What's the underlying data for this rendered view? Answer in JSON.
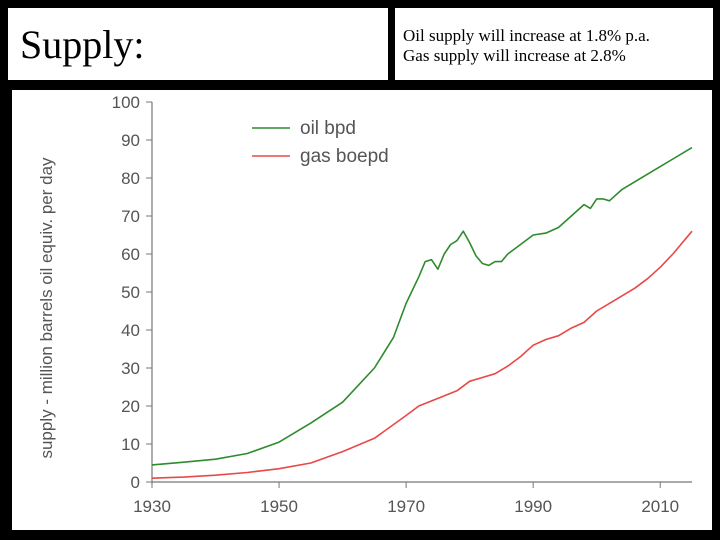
{
  "slide": {
    "title": "Supply:",
    "notes": [
      "Oil supply will increase at 1.8% p.a.",
      "Gas supply will increase at 2.8%"
    ]
  },
  "chart_data": {
    "type": "line",
    "title": "",
    "xlabel": "",
    "ylabel": "supply - million barrels oil equiv. per day",
    "xlim": [
      1930,
      2015
    ],
    "ylim": [
      0,
      100
    ],
    "x_ticks": [
      1930,
      1950,
      1970,
      1990,
      2010
    ],
    "y_ticks": [
      0,
      10,
      20,
      30,
      40,
      50,
      60,
      70,
      80,
      90,
      100
    ],
    "grid": false,
    "legend": "top-left",
    "series": [
      {
        "name": "oil bpd",
        "color": "#2e8b2e",
        "points": [
          [
            1930,
            4.5
          ],
          [
            1935,
            5.2
          ],
          [
            1940,
            6.0
          ],
          [
            1945,
            7.5
          ],
          [
            1950,
            10.5
          ],
          [
            1955,
            15.5
          ],
          [
            1960,
            21.0
          ],
          [
            1965,
            30.0
          ],
          [
            1968,
            38.0
          ],
          [
            1970,
            47.0
          ],
          [
            1972,
            54.0
          ],
          [
            1973,
            58.0
          ],
          [
            1974,
            58.5
          ],
          [
            1975,
            56.0
          ],
          [
            1976,
            60.0
          ],
          [
            1977,
            62.5
          ],
          [
            1978,
            63.5
          ],
          [
            1979,
            66.0
          ],
          [
            1980,
            63.0
          ],
          [
            1981,
            59.5
          ],
          [
            1982,
            57.5
          ],
          [
            1983,
            57.0
          ],
          [
            1984,
            58.0
          ],
          [
            1985,
            58.0
          ],
          [
            1986,
            60.0
          ],
          [
            1988,
            62.5
          ],
          [
            1990,
            65.0
          ],
          [
            1992,
            65.5
          ],
          [
            1994,
            67.0
          ],
          [
            1996,
            70.0
          ],
          [
            1998,
            73.0
          ],
          [
            1999,
            72.0
          ],
          [
            2000,
            74.5
          ],
          [
            2001,
            74.5
          ],
          [
            2002,
            74.0
          ],
          [
            2004,
            77.0
          ],
          [
            2006,
            79.0
          ],
          [
            2008,
            81.0
          ],
          [
            2010,
            83.0
          ],
          [
            2012,
            85.0
          ],
          [
            2015,
            88.0
          ]
        ]
      },
      {
        "name": "gas boepd",
        "color": "#e84848",
        "points": [
          [
            1930,
            1.0
          ],
          [
            1935,
            1.3
          ],
          [
            1940,
            1.8
          ],
          [
            1945,
            2.5
          ],
          [
            1950,
            3.5
          ],
          [
            1955,
            5.0
          ],
          [
            1960,
            8.0
          ],
          [
            1965,
            11.5
          ],
          [
            1970,
            17.5
          ],
          [
            1972,
            20.0
          ],
          [
            1975,
            22.0
          ],
          [
            1978,
            24.0
          ],
          [
            1980,
            26.5
          ],
          [
            1982,
            27.5
          ],
          [
            1984,
            28.5
          ],
          [
            1986,
            30.5
          ],
          [
            1988,
            33.0
          ],
          [
            1990,
            36.0
          ],
          [
            1992,
            37.5
          ],
          [
            1994,
            38.5
          ],
          [
            1996,
            40.5
          ],
          [
            1998,
            42.0
          ],
          [
            2000,
            45.0
          ],
          [
            2002,
            47.0
          ],
          [
            2004,
            49.0
          ],
          [
            2006,
            51.0
          ],
          [
            2008,
            53.5
          ],
          [
            2010,
            56.5
          ],
          [
            2012,
            60.0
          ],
          [
            2015,
            66.0
          ]
        ]
      }
    ]
  }
}
